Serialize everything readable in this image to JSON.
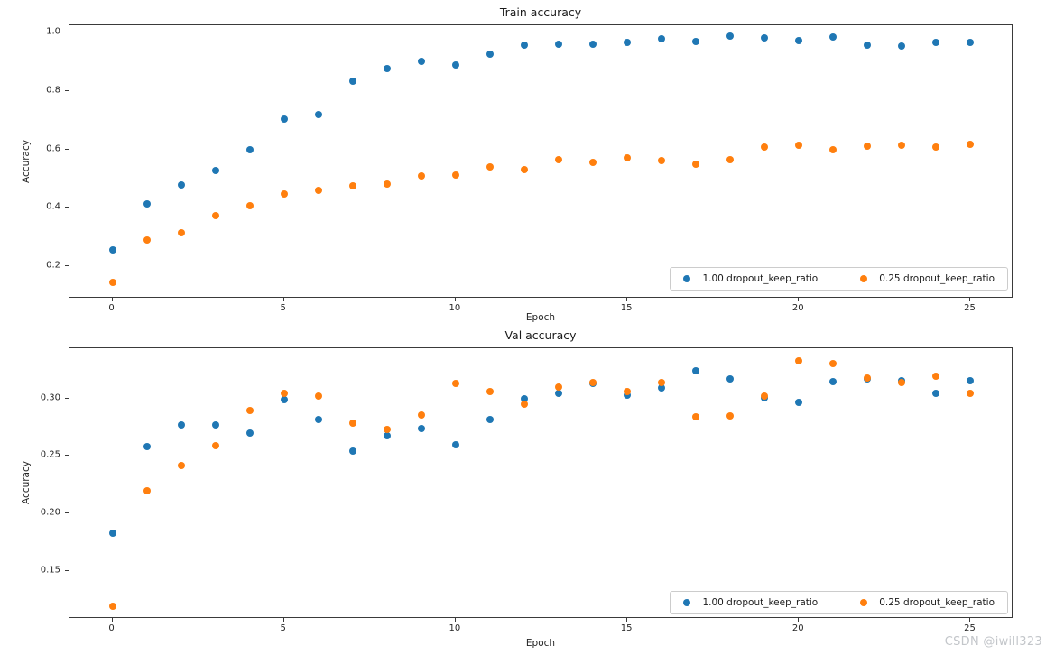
{
  "figure": {
    "background": "#ffffff",
    "watermark": "CSDN @iwill323"
  },
  "colors": {
    "series_blue": "#1f77b4",
    "series_orange": "#ff7f0e",
    "text": "#262626",
    "spine": "#3a3a3a",
    "legend_border": "#cccccc",
    "watermark": "#c3c6ca"
  },
  "chart_data": [
    {
      "type": "scatter",
      "title": "Train accuracy",
      "xlabel": "Epoch",
      "ylabel": "Accuracy",
      "xlim": [
        -1.25,
        26.25
      ],
      "ylim": [
        0.089,
        1.025
      ],
      "xticks": [
        0,
        5,
        10,
        15,
        20,
        25
      ],
      "xtick_labels": [
        "0",
        "5",
        "10",
        "15",
        "20",
        "25"
      ],
      "yticks": [
        0.2,
        0.4,
        0.6,
        0.8,
        1.0
      ],
      "ytick_labels": [
        "0.2",
        "0.4",
        "0.6",
        "0.8",
        "1.0"
      ],
      "grid": false,
      "legend_position": "lower right",
      "x": [
        0,
        1,
        2,
        3,
        4,
        5,
        6,
        7,
        8,
        9,
        10,
        11,
        12,
        13,
        14,
        15,
        16,
        17,
        18,
        19,
        20,
        21,
        22,
        23,
        24,
        25
      ],
      "series": [
        {
          "name": "1.00 dropout_keep_ratio",
          "color": "#1f77b4",
          "values": [
            0.256,
            0.413,
            0.477,
            0.529,
            0.6,
            0.705,
            0.718,
            0.832,
            0.876,
            0.901,
            0.889,
            0.927,
            0.956,
            0.961,
            0.96,
            0.965,
            0.98,
            0.97,
            0.988,
            0.982,
            0.971,
            0.985,
            0.957,
            0.953,
            0.967,
            0.967
          ]
        },
        {
          "name": "0.25 dropout_keep_ratio",
          "color": "#ff7f0e",
          "values": [
            0.145,
            0.291,
            0.315,
            0.373,
            0.408,
            0.447,
            0.46,
            0.475,
            0.48,
            0.508,
            0.513,
            0.54,
            0.532,
            0.566,
            0.556,
            0.57,
            0.561,
            0.55,
            0.566,
            0.607,
            0.615,
            0.599,
            0.612,
            0.613,
            0.609,
            0.617
          ]
        }
      ]
    },
    {
      "type": "scatter",
      "title": "Val accuracy",
      "xlabel": "Epoch",
      "ylabel": "Accuracy",
      "xlim": [
        -1.25,
        26.25
      ],
      "ylim": [
        0.108,
        0.344
      ],
      "xticks": [
        0,
        5,
        10,
        15,
        20,
        25
      ],
      "xtick_labels": [
        "0",
        "5",
        "10",
        "15",
        "20",
        "25"
      ],
      "yticks": [
        0.15,
        0.2,
        0.25,
        0.3
      ],
      "ytick_labels": [
        "0.15",
        "0.20",
        "0.25",
        "0.30"
      ],
      "grid": false,
      "legend_position": "lower right",
      "x": [
        0,
        1,
        2,
        3,
        4,
        5,
        6,
        7,
        8,
        9,
        10,
        11,
        12,
        13,
        14,
        15,
        16,
        17,
        18,
        19,
        20,
        21,
        22,
        23,
        24,
        25
      ],
      "series": [
        {
          "name": "1.00 dropout_keep_ratio",
          "color": "#1f77b4",
          "values": [
            0.183,
            0.258,
            0.277,
            0.277,
            0.27,
            0.299,
            0.282,
            0.254,
            0.268,
            0.274,
            0.26,
            0.282,
            0.3,
            0.305,
            0.313,
            0.303,
            0.309,
            0.324,
            0.317,
            0.301,
            0.297,
            0.315,
            0.317,
            0.316,
            0.305,
            0.316
          ]
        },
        {
          "name": "0.25 dropout_keep_ratio",
          "color": "#ff7f0e",
          "values": [
            0.119,
            0.22,
            0.242,
            0.259,
            0.29,
            0.305,
            0.302,
            0.279,
            0.273,
            0.286,
            0.313,
            0.306,
            0.295,
            0.31,
            0.314,
            0.306,
            0.314,
            0.284,
            0.285,
            0.302,
            0.333,
            0.331,
            0.318,
            0.314,
            0.32,
            0.305
          ]
        }
      ]
    }
  ]
}
